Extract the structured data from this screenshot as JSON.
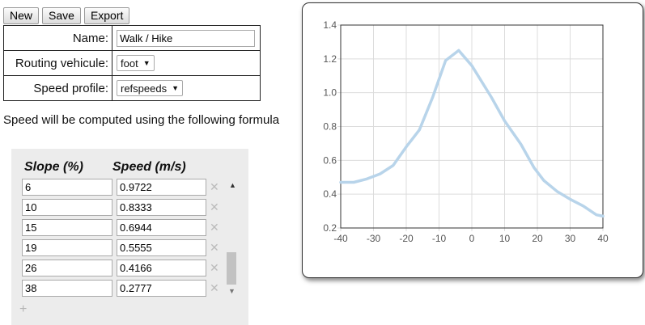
{
  "toolbar": {
    "new_label": "New",
    "save_label": "Save",
    "export_label": "Export"
  },
  "form": {
    "name_label": "Name:",
    "name_value": "Walk / Hike",
    "vehicule_label": "Routing vehicule:",
    "vehicule_value": "foot",
    "profile_label": "Speed profile:",
    "profile_value": "refspeeds"
  },
  "formula_text": "Speed will be computed using the following formula",
  "table": {
    "slope_header": "Slope (%)",
    "speed_header": "Speed (m/s)",
    "rows": [
      {
        "slope": "6",
        "speed": "0.9722"
      },
      {
        "slope": "10",
        "speed": "0.8333"
      },
      {
        "slope": "15",
        "speed": "0.6944"
      },
      {
        "slope": "19",
        "speed": "0.5555"
      },
      {
        "slope": "26",
        "speed": "0.4166"
      },
      {
        "slope": "38",
        "speed": "0.2777"
      }
    ],
    "remove_symbol": "✕",
    "add_symbol": "+"
  },
  "chart_data": {
    "type": "line",
    "x": [
      -40,
      -36,
      -32,
      -28,
      -24,
      -20,
      -16,
      -12,
      -8,
      -4,
      0,
      6,
      10,
      15,
      19,
      22,
      26,
      30,
      34,
      38,
      40
    ],
    "series": [
      {
        "values": [
          0.47,
          0.47,
          0.49,
          0.52,
          0.57,
          0.68,
          0.78,
          0.97,
          1.19,
          1.25,
          1.16,
          0.9722,
          0.8333,
          0.6944,
          0.5555,
          0.48,
          0.4166,
          0.37,
          0.33,
          0.2777,
          0.27
        ]
      }
    ],
    "xlim": [
      -40,
      40
    ],
    "ylim": [
      0.2,
      1.4
    ],
    "xticks": [
      "-40",
      "-30",
      "-20",
      "-10",
      "0",
      "10",
      "20",
      "30",
      "40"
    ],
    "yticks": [
      "0.2",
      "0.4",
      "0.6",
      "0.8",
      "1.0",
      "1.2",
      "1.4"
    ],
    "grid": true,
    "line_color": "#b8d4ea"
  }
}
